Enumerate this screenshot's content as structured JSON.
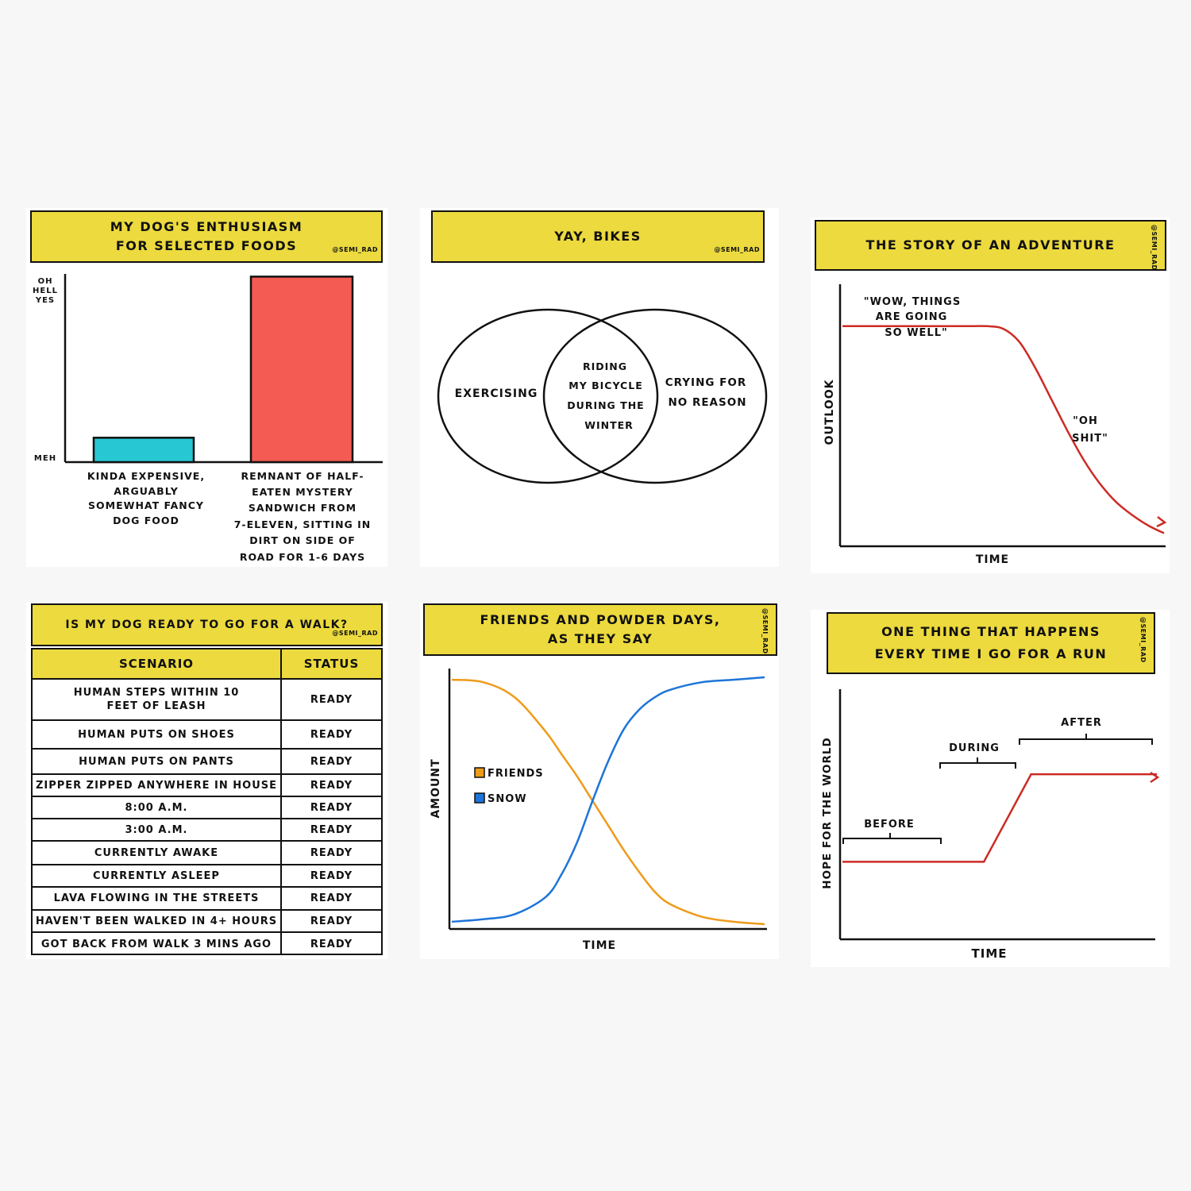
{
  "handle": "@SEMI_RAD",
  "colors": {
    "banner": "#ecda3e",
    "teal": "#27c7d4",
    "coral": "#f45b52",
    "red": "#cc2b25",
    "orange": "#ee9b1a",
    "blue": "#1e74d8"
  },
  "panel1": {
    "title1": "MY DOG'S ENTHUSIASM",
    "title2": "FOR SELECTED FOODS",
    "ytop": [
      "OH",
      "HELL",
      "YES"
    ],
    "ybottom": "MEH",
    "bar1_label": [
      "KINDA EXPENSIVE,",
      "ARGUABLY",
      "SOMEWHAT FANCY",
      "DOG FOOD"
    ],
    "bar2_label": [
      "REMNANT OF HALF-",
      "EATEN MYSTERY",
      "SANDWICH FROM",
      "7-ELEVEN, SITTING IN",
      "DIRT ON SIDE OF",
      "ROAD FOR 1-6 DAYS"
    ]
  },
  "panel2": {
    "title": "YAY, BIKES",
    "left": "EXERCISING",
    "middle": [
      "RIDING",
      "MY BICYCLE",
      "DURING THE",
      "WINTER"
    ],
    "right": [
      "CRYING FOR",
      "NO REASON"
    ]
  },
  "panel3": {
    "title": "THE STORY OF AN ADVENTURE",
    "ylabel": "OUTLOOK",
    "xlabel": "TIME",
    "quote1": [
      "\"WOW, THINGS",
      "ARE GOING",
      "SO WELL\""
    ],
    "quote2": [
      "\"OH",
      "SHIT\""
    ]
  },
  "panel4": {
    "title": "IS MY DOG READY TO GO FOR A WALK?",
    "headers": [
      "SCENARIO",
      "STATUS"
    ],
    "rows": [
      {
        "scenario": "HUMAN STEPS WITHIN 10 FEET OF LEASH",
        "status": "READY"
      },
      {
        "scenario": "HUMAN PUTS ON SHOES",
        "status": "READY"
      },
      {
        "scenario": "HUMAN PUTS ON PANTS",
        "status": "READY"
      },
      {
        "scenario": "ZIPPER ZIPPED ANYWHERE IN HOUSE",
        "status": "READY"
      },
      {
        "scenario": "8:00 A.M.",
        "status": "READY"
      },
      {
        "scenario": "3:00 A.M.",
        "status": "READY"
      },
      {
        "scenario": "CURRENTLY AWAKE",
        "status": "READY"
      },
      {
        "scenario": "CURRENTLY ASLEEP",
        "status": "READY"
      },
      {
        "scenario": "LAVA FLOWING IN THE STREETS",
        "status": "READY"
      },
      {
        "scenario": "HAVEN'T BEEN WALKED IN 4+ HOURS",
        "status": "READY"
      },
      {
        "scenario": "GOT BACK FROM WALK 3 MINS AGO",
        "status": "READY"
      }
    ]
  },
  "panel5": {
    "title1": "FRIENDS AND POWDER DAYS,",
    "title2": "AS THEY SAY",
    "ylabel": "AMOUNT",
    "xlabel": "TIME"
  },
  "panel6": {
    "title1": "ONE THING THAT HAPPENS",
    "title2": "EVERY TIME I GO FOR A RUN",
    "ylabel": "HOPE FOR THE WORLD",
    "xlabel": "TIME",
    "phases": [
      "BEFORE",
      "DURING",
      "AFTER"
    ]
  },
  "chart_data": [
    {
      "type": "bar",
      "categories": [
        "KINDA EXPENSIVE, ARGUABLY SOMEWHAT FANCY DOG FOOD",
        "REMNANT OF HALF-EATEN MYSTERY SANDWICH FROM 7-ELEVEN, SITTING IN DIRT ON SIDE OF ROAD FOR 1-6 DAYS"
      ],
      "values": [
        0.13,
        0.99
      ],
      "title": "MY DOG'S ENTHUSIASM FOR SELECTED FOODS",
      "ylim": [
        0,
        1
      ],
      "ytick_labels": [
        "MEH",
        "OH HELL YES"
      ],
      "colors": [
        "#27c7d4",
        "#f45b52"
      ]
    },
    {
      "type": "line",
      "title": "THE STORY OF AN ADVENTURE",
      "xlabel": "TIME",
      "ylabel": "OUTLOOK",
      "x": [
        0,
        0.1,
        0.2,
        0.3,
        0.4,
        0.45,
        0.5,
        0.55,
        0.6,
        0.65,
        0.7,
        0.75,
        0.8,
        0.85,
        0.9,
        0.95,
        1.0
      ],
      "series": [
        {
          "values": [
            0.84,
            0.84,
            0.84,
            0.84,
            0.84,
            0.84,
            0.83,
            0.78,
            0.68,
            0.56,
            0.44,
            0.33,
            0.24,
            0.17,
            0.12,
            0.08,
            0.05
          ]
        }
      ],
      "ylim": [
        0,
        1
      ]
    },
    {
      "type": "line",
      "title": "FRIENDS AND POWDER DAYS, AS THEY SAY",
      "xlabel": "TIME",
      "ylabel": "AMOUNT",
      "x": [
        0,
        0.1,
        0.2,
        0.3,
        0.35,
        0.4,
        0.45,
        0.5,
        0.55,
        0.6,
        0.65,
        0.7,
        0.8,
        0.9,
        1.0
      ],
      "series": [
        {
          "name": "FRIENDS",
          "color": "#ee9b1a",
          "values": [
            0.99,
            0.98,
            0.92,
            0.78,
            0.69,
            0.6,
            0.5,
            0.4,
            0.3,
            0.21,
            0.13,
            0.08,
            0.03,
            0.01,
            0.0
          ]
        },
        {
          "name": "SNOW",
          "color": "#1e74d8",
          "values": [
            0.01,
            0.02,
            0.04,
            0.11,
            0.2,
            0.33,
            0.5,
            0.66,
            0.79,
            0.87,
            0.92,
            0.95,
            0.98,
            0.99,
            1.0
          ]
        }
      ],
      "legend": "left",
      "ylim": [
        0,
        1
      ]
    },
    {
      "type": "line",
      "title": "ONE THING THAT HAPPENS EVERY TIME I GO FOR A RUN",
      "xlabel": "TIME",
      "ylabel": "HOPE FOR THE WORLD",
      "x": [
        0,
        0.45,
        0.6,
        1.0
      ],
      "series": [
        {
          "values": [
            0.31,
            0.31,
            0.66,
            0.66
          ]
        }
      ],
      "annotations": [
        "BEFORE",
        "DURING",
        "AFTER"
      ],
      "ylim": [
        0,
        1
      ]
    }
  ]
}
